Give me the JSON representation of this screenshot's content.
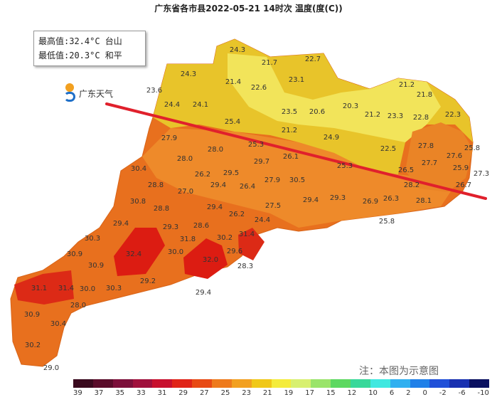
{
  "title": "广东省各市县2022-05-21 14时次 温度(度(C))",
  "extremes": {
    "max_label": "最高值:32.4°C 台山",
    "min_label": "最低值:20.3°C 和平"
  },
  "logo_text": "广东天气",
  "note": "注：本图为示意图",
  "colorbar": {
    "ticks": [
      "39",
      "37",
      "35",
      "33",
      "31",
      "29",
      "27",
      "25",
      "23",
      "21",
      "19",
      "17",
      "15",
      "12",
      "10",
      "6",
      "2",
      "0",
      "-2",
      "-6",
      "-10"
    ],
    "colors": [
      "#3a0a1e",
      "#5a0c2a",
      "#7c0f3a",
      "#a0103c",
      "#c8102e",
      "#e02418",
      "#e84a14",
      "#ee7a1c",
      "#f2a020",
      "#f0c818",
      "#f4ec3c",
      "#d8f070",
      "#9ae46a",
      "#5cd860",
      "#38d89a",
      "#40e8e0",
      "#30b0f0",
      "#2080e8",
      "#2050d8",
      "#1830b0",
      "#0a1060"
    ]
  },
  "annotation_line_color": "#e0202c",
  "stations": [
    "24.3",
    "21.7",
    "22.7",
    "24.3",
    "21.4",
    "22.6",
    "23.1",
    "23.6",
    "24.4",
    "24.1",
    "21.2",
    "21.8",
    "23.5",
    "20.6",
    "20.3",
    "21.2",
    "23.3",
    "22.8",
    "22.3",
    "25.4",
    "21.2",
    "24.9",
    "27.9",
    "25.3",
    "28.0",
    "28.0",
    "26.1",
    "22.5",
    "27.8",
    "27.6",
    "25.8",
    "30.4",
    "29.7",
    "25.3",
    "26.5",
    "27.7",
    "25.9",
    "27.3",
    "26.2",
    "29.5",
    "27.9",
    "30.5",
    "28.2",
    "26.7",
    "28.8",
    "27.0",
    "29.4",
    "26.4",
    "29.4",
    "29.3",
    "26.9",
    "26.3",
    "28.1",
    "30.8",
    "28.8",
    "29.4",
    "26.2",
    "27.5",
    "24.4",
    "25.8",
    "29.4",
    "29.3",
    "28.6",
    "31.8",
    "30.2",
    "31.4",
    "30.9",
    "30.3",
    "32.4",
    "30.0",
    "29.6",
    "32.0",
    "28.3",
    "30.9",
    "31.1",
    "31.4",
    "30.0",
    "30.3",
    "29.2",
    "29.4",
    "28.0",
    "30.9",
    "30.4",
    "30.2",
    "29.0"
  ]
}
